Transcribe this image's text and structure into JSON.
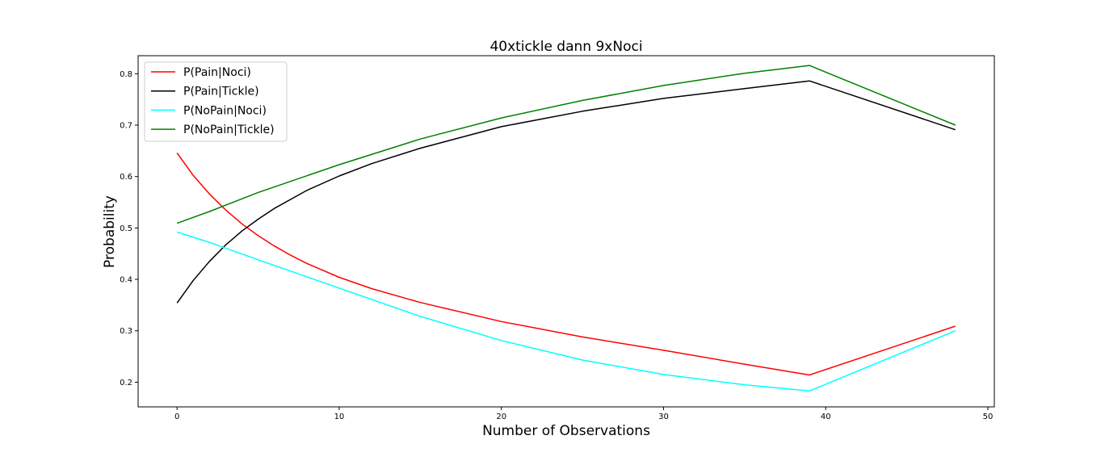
{
  "chart_data": {
    "type": "line",
    "title": "40xtickle dann 9xNoci",
    "xlabel": "Number of Observations",
    "ylabel": "Probability",
    "xlim": [
      -2.4,
      50.4
    ],
    "ylim": [
      0.152,
      0.835
    ],
    "xticks": [
      0,
      10,
      20,
      30,
      40,
      50
    ],
    "yticks": [
      0.2,
      0.3,
      0.4,
      0.5,
      0.6,
      0.7,
      0.8
    ],
    "legend_position": "top-left",
    "grid": false,
    "series": [
      {
        "name": "P(Pain|Noci)",
        "color": "#ff0000",
        "x": [
          0,
          1,
          2,
          3,
          4,
          5,
          6,
          7,
          8,
          10,
          12,
          15,
          20,
          25,
          30,
          35,
          39,
          48
        ],
        "y": [
          0.646,
          0.602,
          0.566,
          0.535,
          0.508,
          0.485,
          0.465,
          0.447,
          0.431,
          0.404,
          0.382,
          0.355,
          0.318,
          0.288,
          0.262,
          0.235,
          0.214,
          0.309
        ]
      },
      {
        "name": "P(Pain|Tickle)",
        "color": "#000000",
        "x": [
          0,
          1,
          2,
          3,
          4,
          5,
          6,
          8,
          10,
          12,
          15,
          20,
          25,
          30,
          35,
          39,
          48
        ],
        "y": [
          0.354,
          0.398,
          0.435,
          0.467,
          0.494,
          0.517,
          0.538,
          0.573,
          0.601,
          0.625,
          0.655,
          0.697,
          0.727,
          0.752,
          0.771,
          0.786,
          0.691
        ]
      },
      {
        "name": "P(NoPain|Noci)",
        "color": "#00ffff",
        "x": [
          0,
          2,
          5,
          10,
          15,
          20,
          25,
          30,
          35,
          39,
          48
        ],
        "y": [
          0.492,
          0.472,
          0.438,
          0.383,
          0.328,
          0.281,
          0.243,
          0.215,
          0.195,
          0.183,
          0.3
        ]
      },
      {
        "name": "P(NoPain|Tickle)",
        "color": "#008000",
        "x": [
          0,
          2,
          5,
          10,
          15,
          20,
          25,
          30,
          35,
          39,
          48
        ],
        "y": [
          0.509,
          0.532,
          0.569,
          0.623,
          0.673,
          0.714,
          0.748,
          0.777,
          0.801,
          0.816,
          0.7
        ]
      }
    ]
  }
}
